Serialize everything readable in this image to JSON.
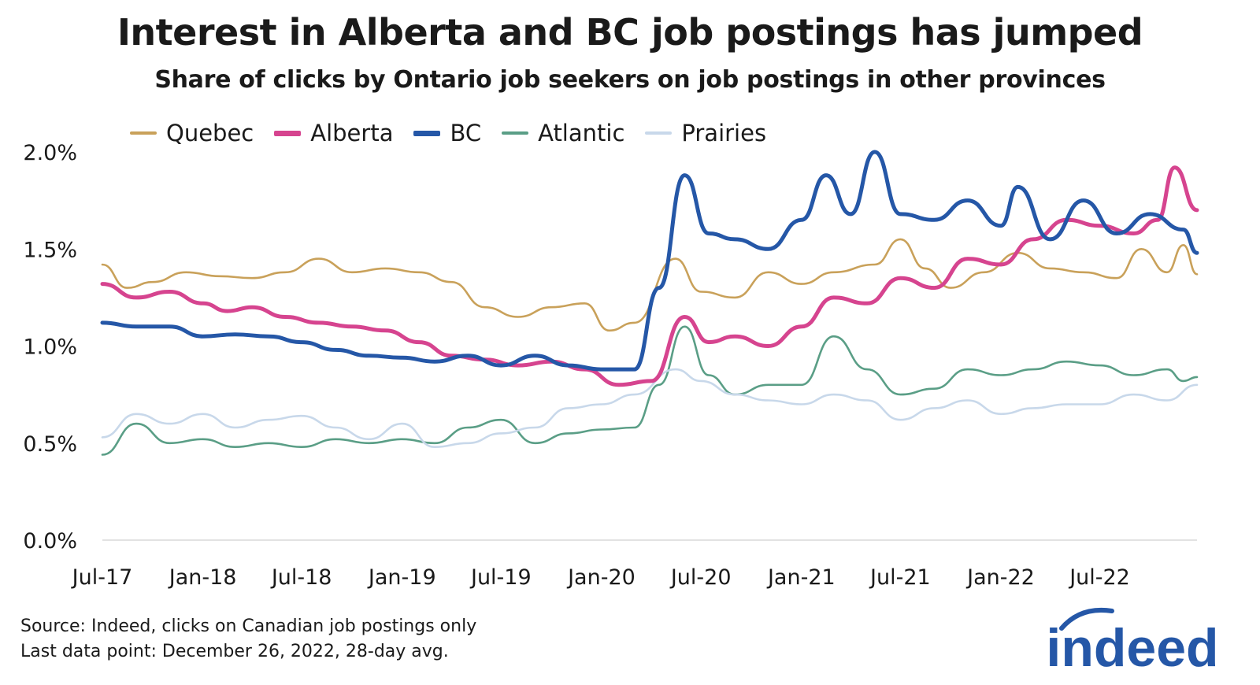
{
  "title": "Interest in Alberta and BC job postings has jumped",
  "subtitle": "Share of clicks by Ontario job seekers on job postings in other provinces",
  "source": {
    "line1": "Source: Indeed, clicks on Canadian job postings only",
    "line2": "Last data point: December 26, 2022, 28-day avg."
  },
  "logo_text": "indeed",
  "chart_data": {
    "type": "line",
    "title": "Interest in Alberta and BC job postings has jumped",
    "subtitle": "Share of clicks by Ontario job seekers on job postings in other provinces",
    "xlabel": "",
    "ylabel": "",
    "x_tick_labels": [
      "Jul-17",
      "Jan-18",
      "Jul-18",
      "Jan-19",
      "Jul-19",
      "Jan-20",
      "Jul-20",
      "Jan-21",
      "Jul-21",
      "Jan-22",
      "Jul-22"
    ],
    "y_ticks": [
      0,
      0.5,
      1.0,
      1.5,
      2.0
    ],
    "y_tick_labels": [
      "0.0%",
      "0.5%",
      "1.0%",
      "1.5%",
      "2.0%"
    ],
    "ylim": [
      0,
      2.0
    ],
    "xlim": [
      "2017-07-01",
      "2022-12-26"
    ],
    "grid": false,
    "legend_position": "top",
    "series": [
      {
        "name": "Quebec",
        "color": "#c9a15a",
        "thick": false,
        "x": [
          "2017-07-01",
          "2017-08-15",
          "2017-10-01",
          "2017-12-01",
          "2018-02-01",
          "2018-04-01",
          "2018-06-01",
          "2018-08-01",
          "2018-10-01",
          "2018-12-01",
          "2019-02-01",
          "2019-04-01",
          "2019-06-01",
          "2019-08-01",
          "2019-10-01",
          "2019-12-01",
          "2020-01-15",
          "2020-03-01",
          "2020-05-15",
          "2020-07-01",
          "2020-09-01",
          "2020-11-01",
          "2021-01-01",
          "2021-03-01",
          "2021-05-15",
          "2021-07-01",
          "2021-08-15",
          "2021-10-01",
          "2021-12-01",
          "2022-02-01",
          "2022-04-01",
          "2022-06-01",
          "2022-08-01",
          "2022-09-15",
          "2022-11-01",
          "2022-12-01",
          "2022-12-26"
        ],
        "y": [
          1.42,
          1.3,
          1.33,
          1.38,
          1.36,
          1.35,
          1.38,
          1.45,
          1.38,
          1.4,
          1.38,
          1.33,
          1.2,
          1.15,
          1.2,
          1.22,
          1.08,
          1.12,
          1.45,
          1.28,
          1.25,
          1.38,
          1.32,
          1.38,
          1.42,
          1.55,
          1.4,
          1.3,
          1.38,
          1.48,
          1.4,
          1.38,
          1.35,
          1.5,
          1.38,
          1.52,
          1.37
        ]
      },
      {
        "name": "Alberta",
        "color": "#d6448f",
        "thick": true,
        "x": [
          "2017-07-01",
          "2017-09-01",
          "2017-11-01",
          "2018-01-01",
          "2018-02-15",
          "2018-04-01",
          "2018-06-01",
          "2018-08-01",
          "2018-10-01",
          "2018-12-01",
          "2019-02-01",
          "2019-04-01",
          "2019-06-01",
          "2019-08-01",
          "2019-10-01",
          "2019-12-01",
          "2020-02-01",
          "2020-04-01",
          "2020-06-01",
          "2020-07-15",
          "2020-09-01",
          "2020-11-01",
          "2021-01-01",
          "2021-03-01",
          "2021-05-01",
          "2021-07-01",
          "2021-09-01",
          "2021-11-01",
          "2022-01-01",
          "2022-03-01",
          "2022-05-01",
          "2022-07-01",
          "2022-09-01",
          "2022-10-15",
          "2022-11-15",
          "2022-12-26"
        ],
        "y": [
          1.32,
          1.25,
          1.28,
          1.22,
          1.18,
          1.2,
          1.15,
          1.12,
          1.1,
          1.08,
          1.02,
          0.95,
          0.93,
          0.9,
          0.92,
          0.88,
          0.8,
          0.82,
          1.15,
          1.02,
          1.05,
          1.0,
          1.1,
          1.25,
          1.22,
          1.35,
          1.3,
          1.45,
          1.42,
          1.55,
          1.65,
          1.62,
          1.58,
          1.65,
          1.92,
          1.7
        ]
      },
      {
        "name": "BC",
        "color": "#2557a7",
        "thick": true,
        "x": [
          "2017-07-01",
          "2017-09-01",
          "2017-11-01",
          "2018-01-01",
          "2018-03-01",
          "2018-05-01",
          "2018-07-01",
          "2018-09-01",
          "2018-11-01",
          "2019-01-01",
          "2019-03-01",
          "2019-05-01",
          "2019-07-01",
          "2019-09-01",
          "2019-11-01",
          "2020-01-01",
          "2020-03-01",
          "2020-04-15",
          "2020-06-01",
          "2020-07-15",
          "2020-09-01",
          "2020-11-01",
          "2021-01-01",
          "2021-02-15",
          "2021-04-01",
          "2021-05-15",
          "2021-07-01",
          "2021-09-01",
          "2021-11-01",
          "2022-01-01",
          "2022-02-01",
          "2022-04-01",
          "2022-06-01",
          "2022-08-01",
          "2022-10-01",
          "2022-12-01",
          "2022-12-26"
        ],
        "y": [
          1.12,
          1.1,
          1.1,
          1.05,
          1.06,
          1.05,
          1.02,
          0.98,
          0.95,
          0.94,
          0.92,
          0.95,
          0.9,
          0.95,
          0.9,
          0.88,
          0.88,
          1.3,
          1.88,
          1.58,
          1.55,
          1.5,
          1.65,
          1.88,
          1.68,
          2.0,
          1.68,
          1.65,
          1.75,
          1.62,
          1.82,
          1.55,
          1.75,
          1.58,
          1.68,
          1.6,
          1.48
        ]
      },
      {
        "name": "Atlantic",
        "color": "#5a9e86",
        "thick": false,
        "x": [
          "2017-07-01",
          "2017-09-01",
          "2017-11-01",
          "2018-01-01",
          "2018-03-01",
          "2018-05-01",
          "2018-07-01",
          "2018-09-01",
          "2018-11-01",
          "2019-01-01",
          "2019-03-01",
          "2019-05-01",
          "2019-07-01",
          "2019-09-01",
          "2019-11-01",
          "2020-01-01",
          "2020-03-01",
          "2020-04-15",
          "2020-06-01",
          "2020-07-15",
          "2020-09-01",
          "2020-11-01",
          "2021-01-01",
          "2021-03-01",
          "2021-05-01",
          "2021-07-01",
          "2021-09-01",
          "2021-11-01",
          "2022-01-01",
          "2022-03-01",
          "2022-05-01",
          "2022-07-01",
          "2022-09-01",
          "2022-11-01",
          "2022-12-01",
          "2022-12-26"
        ],
        "y": [
          0.44,
          0.6,
          0.5,
          0.52,
          0.48,
          0.5,
          0.48,
          0.52,
          0.5,
          0.52,
          0.5,
          0.58,
          0.62,
          0.5,
          0.55,
          0.57,
          0.58,
          0.8,
          1.1,
          0.85,
          0.75,
          0.8,
          0.8,
          1.05,
          0.88,
          0.75,
          0.78,
          0.88,
          0.85,
          0.88,
          0.92,
          0.9,
          0.85,
          0.88,
          0.82,
          0.84
        ]
      },
      {
        "name": "Prairies",
        "color": "#c8d8ea",
        "thick": false,
        "x": [
          "2017-07-01",
          "2017-09-01",
          "2017-11-01",
          "2018-01-01",
          "2018-03-01",
          "2018-05-01",
          "2018-07-01",
          "2018-09-01",
          "2018-11-01",
          "2019-01-01",
          "2019-03-01",
          "2019-05-01",
          "2019-07-01",
          "2019-09-01",
          "2019-11-01",
          "2020-01-01",
          "2020-03-01",
          "2020-05-15",
          "2020-07-01",
          "2020-09-01",
          "2020-11-01",
          "2021-01-01",
          "2021-03-01",
          "2021-05-01",
          "2021-07-01",
          "2021-09-01",
          "2021-11-01",
          "2022-01-01",
          "2022-03-01",
          "2022-05-01",
          "2022-07-01",
          "2022-09-01",
          "2022-11-01",
          "2022-12-26"
        ],
        "y": [
          0.53,
          0.65,
          0.6,
          0.65,
          0.58,
          0.62,
          0.64,
          0.58,
          0.52,
          0.6,
          0.48,
          0.5,
          0.55,
          0.58,
          0.68,
          0.7,
          0.75,
          0.88,
          0.82,
          0.75,
          0.72,
          0.7,
          0.75,
          0.72,
          0.62,
          0.68,
          0.72,
          0.65,
          0.68,
          0.7,
          0.7,
          0.75,
          0.72,
          0.8
        ]
      }
    ]
  }
}
